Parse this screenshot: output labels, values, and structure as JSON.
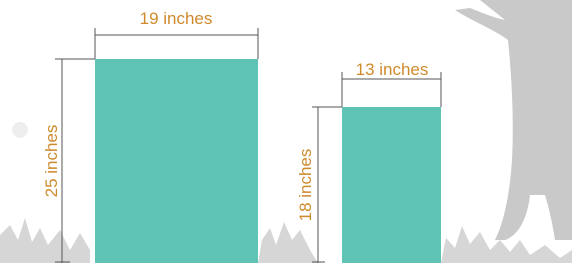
{
  "panels": [
    {
      "width_label": "19 inches",
      "height_label": "25 inches"
    },
    {
      "width_label": "13 inches",
      "height_label": "18 inches"
    }
  ]
}
